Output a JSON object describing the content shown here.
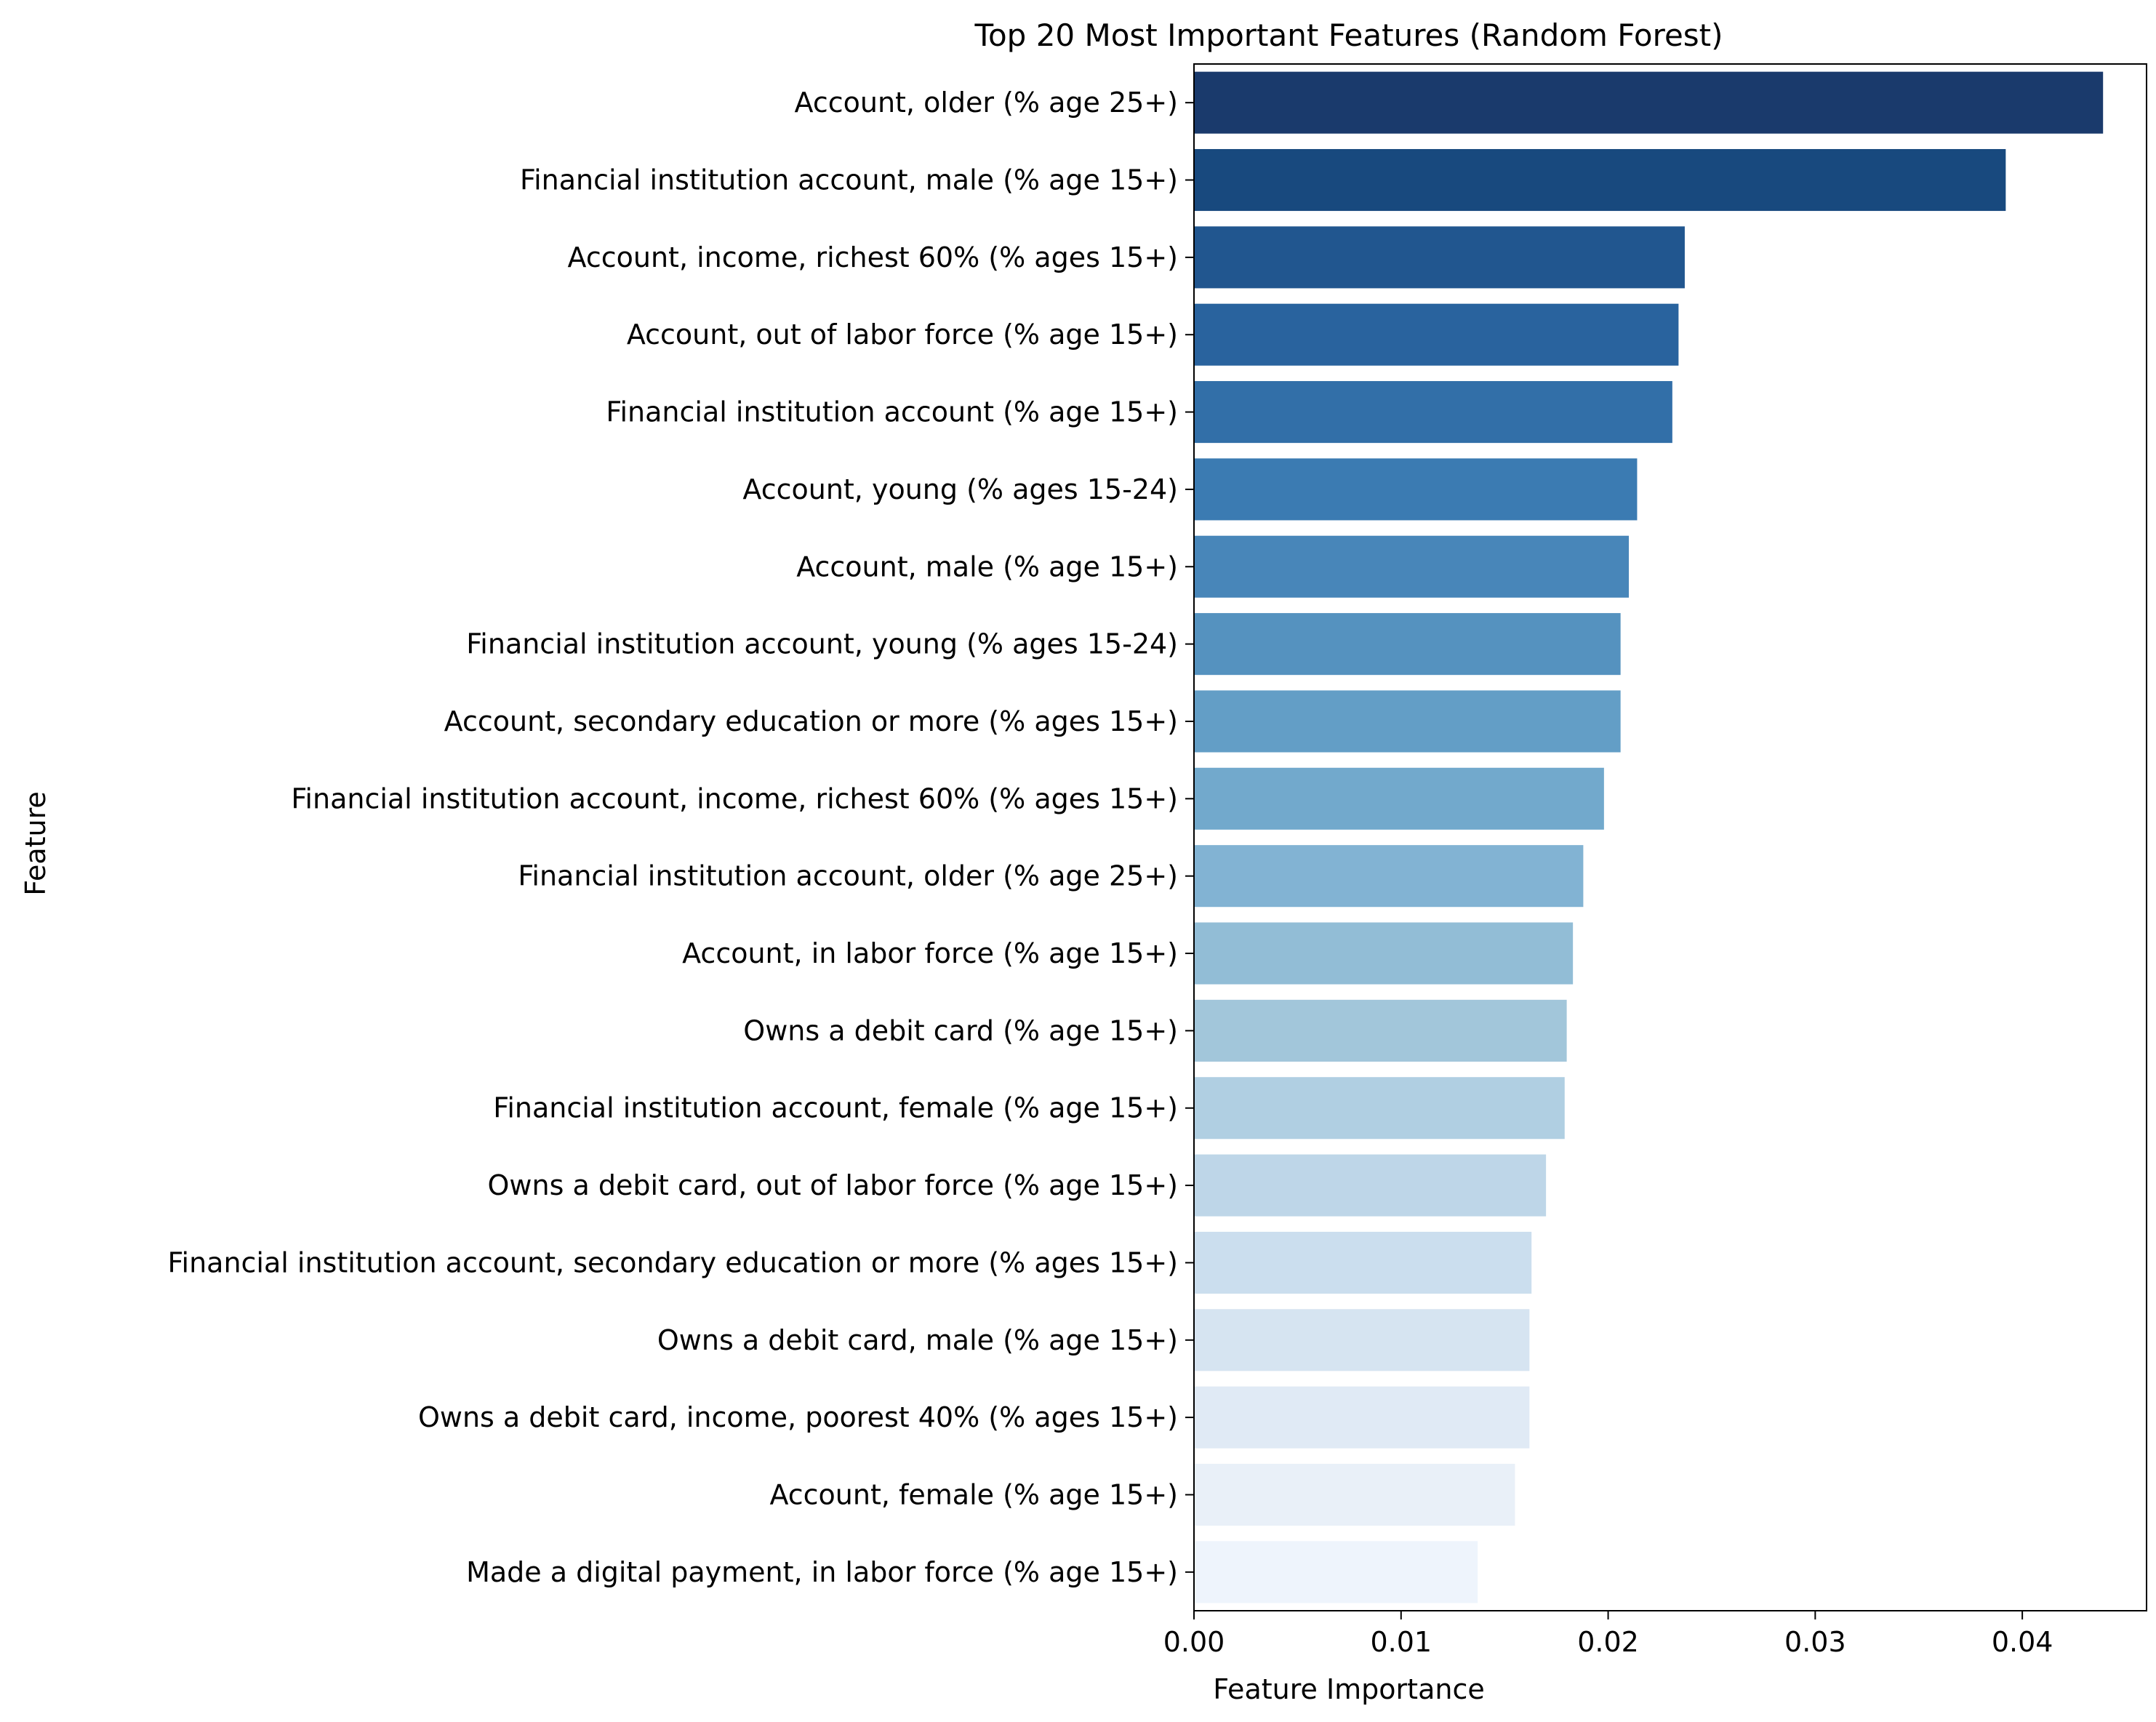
{
  "chart_data": {
    "type": "bar",
    "orientation": "horizontal",
    "title": "Top 20 Most Important Features (Random Forest)",
    "xlabel": "Feature Importance",
    "ylabel": "Feature",
    "xlim": [
      0,
      0.046
    ],
    "xticks": [
      0.0,
      0.01,
      0.02,
      0.03,
      0.04
    ],
    "xtick_labels": [
      "0.00",
      "0.01",
      "0.02",
      "0.03",
      "0.04"
    ],
    "grid": false,
    "legend": "none",
    "color_scale": "Blues (dark to light)",
    "categories": [
      "Account, older (% age 25+)",
      "Financial institution account, male (% age 15+)",
      "Account, income, richest 60% (% ages 15+)",
      "Account, out of labor force (% age 15+)",
      "Financial institution account (% age 15+)",
      "Account, young (% ages 15-24)",
      "Account, male (% age 15+)",
      "Financial institution account, young (% ages 15-24)",
      "Account, secondary education or more (% ages 15+)",
      "Financial institution account, income, richest 60% (% ages 15+)",
      "Financial institution account, older (% age 25+)",
      "Account, in labor force (% age 15+)",
      "Owns a debit card (% age 15+)",
      "Financial institution account, female (% age 15+)",
      "Owns a debit card, out of labor force (% age 15+)",
      "Financial institution account, secondary education or more (% ages 15+)",
      "Owns a debit card, male (% age 15+)",
      "Owns a debit card, income, poorest 40% (% ages 15+)",
      "Account, female (% age 15+)",
      "Made a digital payment, in labor force (% age 15+)"
    ],
    "values": [
      0.0439,
      0.0392,
      0.0237,
      0.0234,
      0.0231,
      0.0214,
      0.021,
      0.0206,
      0.0206,
      0.0198,
      0.0188,
      0.0183,
      0.018,
      0.0179,
      0.017,
      0.0163,
      0.0162,
      0.0162,
      0.0155,
      0.0137
    ],
    "colors": [
      "#1a3a6c",
      "#18497e",
      "#21568f",
      "#29639e",
      "#326fa8",
      "#3b7bb2",
      "#4886b9",
      "#5592bf",
      "#639ec6",
      "#72a9cc",
      "#82b3d3",
      "#92bdd6",
      "#a2c6da",
      "#b0cfe2",
      "#bed6e8",
      "#cbdeee",
      "#d6e4f1",
      "#e0eaf5",
      "#e9f0f8",
      "#eef4fc"
    ]
  }
}
